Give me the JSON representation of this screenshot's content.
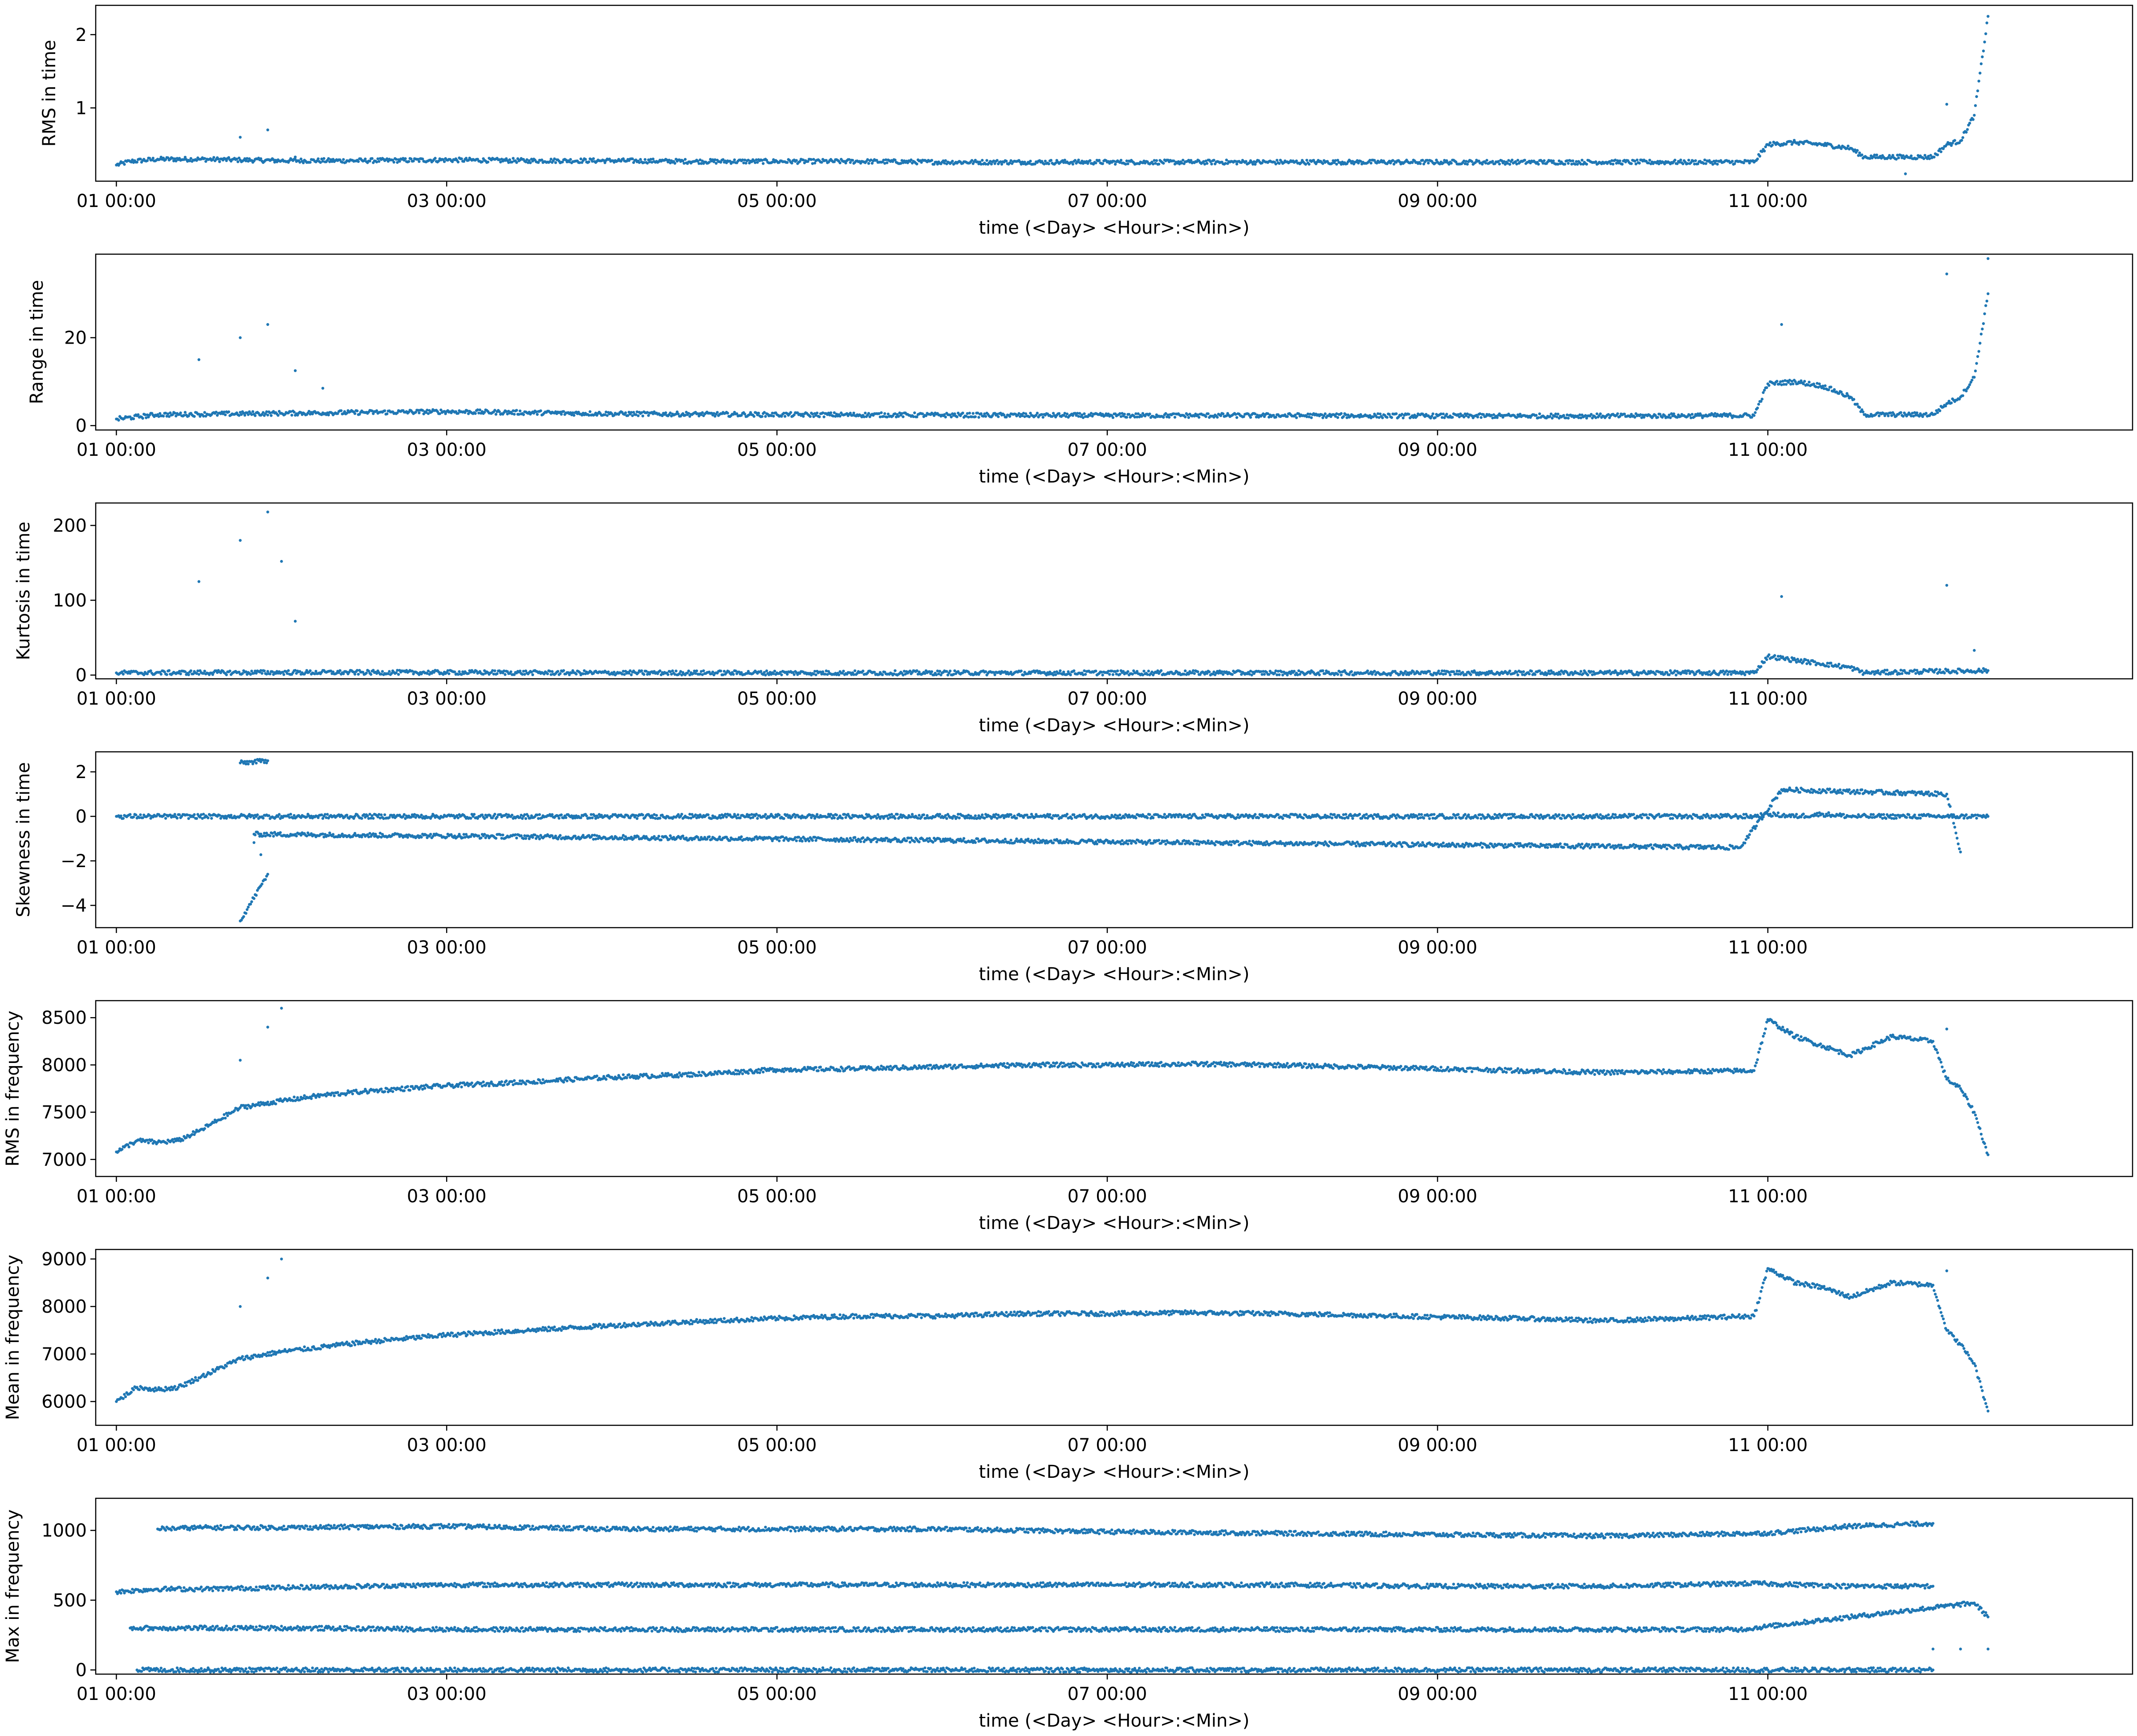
{
  "chart_data": [
    {
      "type": "scatter",
      "ylabel": "RMS in time",
      "xlabel": "time (<Day> <Hour>:<Min>)",
      "ylim": [
        0.0,
        2.4
      ],
      "yticks": [
        1,
        2
      ],
      "xlim": [
        "00 21:00",
        "13 05:00"
      ],
      "xticks": [
        "01 00:00",
        "03 00:00",
        "05 00:00",
        "07 00:00",
        "09 00:00",
        "11 00:00"
      ],
      "grid": false,
      "color": "#1f77b4",
      "series": [
        {
          "x": [
            "01 00:00",
            "01 02:00",
            "01 06:00",
            "01 12:00",
            "01 18:00",
            "02 00:00",
            "02 12:00",
            "03 00:00",
            "03 12:00",
            "04 00:00",
            "04 12:00",
            "05 00:00",
            "05 12:00",
            "06 00:00",
            "06 12:00",
            "07 00:00",
            "07 12:00",
            "08 00:00",
            "08 12:00",
            "09 00:00",
            "09 12:00",
            "10 00:00",
            "10 12:00",
            "10 22:00",
            "11 00:00",
            "11 04:00",
            "11 08:00",
            "11 12:00",
            "11 14:00",
            "11 20:00",
            "11 22:00",
            "12 00:00",
            "12 02:00",
            "12 04:00",
            "12 06:00",
            "12 08:00"
          ],
          "y": [
            0.22,
            0.27,
            0.3,
            0.3,
            0.29,
            0.28,
            0.28,
            0.29,
            0.28,
            0.28,
            0.27,
            0.27,
            0.27,
            0.26,
            0.26,
            0.26,
            0.26,
            0.26,
            0.26,
            0.26,
            0.26,
            0.26,
            0.26,
            0.26,
            0.5,
            0.53,
            0.5,
            0.45,
            0.33,
            0.33,
            0.33,
            0.33,
            0.5,
            0.55,
            0.9,
            2.25
          ]
        },
        {
          "x": [
            "01 18:00",
            "01 22:00",
            "02 02:00",
            "11 20:00",
            "12 02:00"
          ],
          "y": [
            0.6,
            0.7,
            0.33,
            0.1,
            1.05
          ]
        }
      ]
    },
    {
      "type": "scatter",
      "ylabel": "Range in time",
      "xlabel": "time (<Day> <Hour>:<Min>)",
      "ylim": [
        -1.0,
        39.0
      ],
      "yticks": [
        0,
        20
      ],
      "xlim": [
        "00 21:00",
        "13 05:00"
      ],
      "xticks": [
        "01 00:00",
        "03 00:00",
        "05 00:00",
        "07 00:00",
        "09 00:00",
        "11 00:00"
      ],
      "grid": false,
      "color": "#1f77b4",
      "series": [
        {
          "x": [
            "01 00:00",
            "01 06:00",
            "01 12:00",
            "02 00:00",
            "02 12:00",
            "03 00:00",
            "04 00:00",
            "05 00:00",
            "06 00:00",
            "07 00:00",
            "08 00:00",
            "09 00:00",
            "10 00:00",
            "10 22:00",
            "11 00:00",
            "11 04:00",
            "11 08:00",
            "11 12:00",
            "11 14:00",
            "11 20:00",
            "12 00:00",
            "12 02:00",
            "12 04:00",
            "12 06:00",
            "12 08:00"
          ],
          "y": [
            1.5,
            2.5,
            2.6,
            2.8,
            3.0,
            3.2,
            2.7,
            2.5,
            2.4,
            2.3,
            2.3,
            2.2,
            2.2,
            2.3,
            9.5,
            10.0,
            9.0,
            6.5,
            2.5,
            2.5,
            2.5,
            5.0,
            6.5,
            11.0,
            30.0
          ]
        },
        {
          "x": [
            "01 12:00",
            "01 18:00",
            "01 22:00",
            "02 02:00",
            "02 06:00",
            "11 02:00",
            "12 02:00",
            "12 08:00"
          ],
          "y": [
            15.0,
            20.0,
            23.0,
            12.5,
            8.5,
            23.0,
            34.5,
            38.0
          ]
        }
      ]
    },
    {
      "type": "scatter",
      "ylabel": "Kurtosis in time",
      "xlabel": "time (<Day> <Hour>:<Min>)",
      "ylim": [
        -5.0,
        230.0
      ],
      "yticks": [
        0,
        100,
        200
      ],
      "xlim": [
        "00 21:00",
        "13 05:00"
      ],
      "xticks": [
        "01 00:00",
        "03 00:00",
        "05 00:00",
        "07 00:00",
        "09 00:00",
        "11 00:00"
      ],
      "grid": false,
      "color": "#1f77b4",
      "series": [
        {
          "x": [
            "01 00:00",
            "02 00:00",
            "03 00:00",
            "04 00:00",
            "05 00:00",
            "06 00:00",
            "07 00:00",
            "08 00:00",
            "09 00:00",
            "10 00:00",
            "10 22:00",
            "11 00:00",
            "11 04:00",
            "11 08:00",
            "11 12:00",
            "11 14:00",
            "12 00:00",
            "12 08:00"
          ],
          "y": [
            3,
            3.5,
            3.5,
            3,
            3,
            3,
            3,
            3,
            3,
            3,
            3,
            25,
            20,
            15,
            10,
            3,
            5,
            6
          ]
        },
        {
          "x": [
            "01 12:00",
            "01 18:00",
            "01 22:00",
            "02 00:00",
            "02 02:00",
            "11 02:00",
            "12 02:00",
            "12 06:00"
          ],
          "y": [
            125,
            180,
            218,
            152,
            72,
            105,
            120,
            33
          ]
        }
      ]
    },
    {
      "type": "scatter",
      "ylabel": "Skewness in time",
      "xlabel": "time (<Day> <Hour>:<Min>)",
      "ylim": [
        -5.0,
        2.9
      ],
      "yticks": [
        -4,
        -2,
        0,
        2
      ],
      "xlim": [
        "00 21:00",
        "13 05:00"
      ],
      "xticks": [
        "01 00:00",
        "03 00:00",
        "05 00:00",
        "07 00:00",
        "09 00:00",
        "11 00:00"
      ],
      "grid": false,
      "color": "#1f77b4",
      "series": [
        {
          "x": [
            "01 00:00",
            "02 00:00",
            "03 00:00",
            "04 00:00",
            "05 00:00",
            "06 00:00",
            "07 00:00",
            "08 00:00",
            "09 00:00",
            "10 00:00",
            "10 22:00",
            "11 00:00",
            "11 04:00",
            "11 08:00",
            "11 12:00",
            "12 00:00",
            "12 08:00"
          ],
          "y": [
            0,
            0,
            0,
            0,
            0,
            0,
            0,
            0,
            0,
            0,
            0,
            0.1,
            0.0,
            0.1,
            0.0,
            0.0,
            0.0
          ]
        },
        {
          "x": [
            "01 18:00",
            "01 22:00",
            "01 18:00",
            "01 22:00",
            "01 20:00",
            "10 20:00",
            "11 02:00",
            "12 02:00",
            "12 04:00"
          ],
          "y": [
            2.4,
            2.5,
            -4.7,
            -2.6,
            -0.8,
            -1.4,
            1.2,
            1.0,
            -1.6
          ]
        }
      ]
    },
    {
      "type": "scatter",
      "ylabel": "RMS in frequency",
      "xlabel": "time (<Day> <Hour>:<Min>)",
      "ylim": [
        6820,
        8680
      ],
      "yticks": [
        7000,
        7500,
        8000,
        8500
      ],
      "xlim": [
        "00 21:00",
        "13 05:00"
      ],
      "xticks": [
        "01 00:00",
        "03 00:00",
        "05 00:00",
        "07 00:00",
        "09 00:00",
        "11 00:00"
      ],
      "grid": false,
      "color": "#1f77b4",
      "series": [
        {
          "x": [
            "01 00:00",
            "01 03:00",
            "01 06:00",
            "01 09:00",
            "01 12:00",
            "01 18:00",
            "02 00:00",
            "02 06:00",
            "02 12:00",
            "03 00:00",
            "03 12:00",
            "04 00:00",
            "04 12:00",
            "05 00:00",
            "05 12:00",
            "06 00:00",
            "06 12:00",
            "07 00:00",
            "07 12:00",
            "08 00:00",
            "08 12:00",
            "09 00:00",
            "09 12:00",
            "10 00:00",
            "10 12:00",
            "10 22:00",
            "11 00:00",
            "11 04:00",
            "11 08:00",
            "11 12:00",
            "11 18:00",
            "12 00:00",
            "12 02:00",
            "12 04:00",
            "12 06:00",
            "12 08:00"
          ],
          "y": [
            7080,
            7200,
            7180,
            7200,
            7300,
            7550,
            7620,
            7680,
            7720,
            7780,
            7820,
            7870,
            7900,
            7950,
            7960,
            7980,
            8000,
            8000,
            8010,
            8000,
            7980,
            7960,
            7940,
            7920,
            7930,
            7940,
            8480,
            8300,
            8200,
            8100,
            8300,
            8250,
            7850,
            7750,
            7500,
            7050
          ]
        },
        {
          "x": [
            "01 18:00",
            "01 22:00",
            "02 00:00",
            "12 02:00"
          ],
          "y": [
            8050,
            8400,
            8600,
            8380
          ]
        }
      ]
    },
    {
      "type": "scatter",
      "ylabel": "Mean in frequency",
      "xlabel": "time (<Day> <Hour>:<Min>)",
      "ylim": [
        5500,
        9200
      ],
      "yticks": [
        6000,
        7000,
        8000,
        9000
      ],
      "xlim": [
        "00 21:00",
        "13 05:00"
      ],
      "xticks": [
        "01 00:00",
        "03 00:00",
        "05 00:00",
        "07 00:00",
        "09 00:00",
        "11 00:00"
      ],
      "grid": false,
      "color": "#1f77b4",
      "series": [
        {
          "x": [
            "01 00:00",
            "01 03:00",
            "01 06:00",
            "01 09:00",
            "01 12:00",
            "01 18:00",
            "02 00:00",
            "02 06:00",
            "02 12:00",
            "03 00:00",
            "03 12:00",
            "04 00:00",
            "04 12:00",
            "05 00:00",
            "05 12:00",
            "06 00:00",
            "06 12:00",
            "07 00:00",
            "07 12:00",
            "08 00:00",
            "08 12:00",
            "09 00:00",
            "09 12:00",
            "10 00:00",
            "10 12:00",
            "10 22:00",
            "11 00:00",
            "11 04:00",
            "11 08:00",
            "11 12:00",
            "11 18:00",
            "12 00:00",
            "12 02:00",
            "12 04:00",
            "12 06:00",
            "12 08:00"
          ],
          "y": [
            6000,
            6300,
            6250,
            6300,
            6500,
            6900,
            7050,
            7150,
            7250,
            7400,
            7500,
            7600,
            7680,
            7750,
            7800,
            7800,
            7850,
            7850,
            7870,
            7850,
            7820,
            7780,
            7750,
            7700,
            7750,
            7800,
            8800,
            8500,
            8400,
            8200,
            8500,
            8450,
            7500,
            7200,
            6800,
            5800
          ]
        },
        {
          "x": [
            "01 18:00",
            "01 22:00",
            "02 00:00",
            "12 02:00"
          ],
          "y": [
            8000,
            8600,
            9000,
            8750
          ]
        }
      ]
    },
    {
      "type": "scatter",
      "ylabel": "Max in frequency",
      "xlabel": "time (<Day> <Hour>:<Min>)",
      "ylim": [
        -30,
        1230
      ],
      "yticks": [
        0,
        500,
        1000
      ],
      "xlim": [
        "00 21:00",
        "13 05:00"
      ],
      "xticks": [
        "01 00:00",
        "03 00:00",
        "05 00:00",
        "07 00:00",
        "09 00:00",
        "11 00:00"
      ],
      "grid": false,
      "color": "#1f77b4",
      "series": [
        {
          "x": [
            "01 00:00",
            "01 06:00",
            "01 12:00",
            "02 00:00",
            "03 00:00",
            "04 00:00",
            "05 00:00",
            "06 00:00",
            "07 00:00",
            "08 00:00",
            "09 00:00",
            "10 00:00",
            "10 22:00",
            "11 12:00",
            "12 00:00"
          ],
          "y": [
            560,
            580,
            580,
            590,
            610,
            610,
            610,
            610,
            610,
            610,
            600,
            600,
            620,
            600,
            600
          ]
        },
        {
          "x": [
            "01 06:00",
            "01 12:00",
            "02 00:00",
            "03 00:00",
            "04 00:00",
            "05 00:00",
            "06 00:00",
            "07 00:00",
            "08 00:00",
            "09 00:00",
            "10 00:00",
            "11 00:00",
            "11 12:00",
            "12 00:00"
          ],
          "y": [
            1010,
            1020,
            1020,
            1030,
            1010,
            1010,
            1010,
            990,
            980,
            970,
            960,
            980,
            1030,
            1050
          ]
        },
        {
          "x": [
            "01 03:00",
            "01 12:00",
            "02 00:00",
            "03 00:00",
            "04 00:00",
            "05 00:00",
            "06 00:00",
            "07 00:00",
            "08 00:00",
            "09 00:00",
            "10 00:00",
            "11 00:00",
            "11 12:00",
            "12 00:00"
          ],
          "y": [
            0,
            0,
            0,
            0,
            0,
            0,
            0,
            0,
            0,
            0,
            0,
            0,
            0,
            0
          ]
        },
        {
          "x": [
            "12 00:00",
            "12 04:00",
            "12 08:00"
          ],
          "y": [
            150,
            150,
            150
          ]
        },
        {
          "x": [
            "01 02:00",
            "01 04:00",
            "01 12:00",
            "01 18:00",
            "02 02:00",
            "03 02:00",
            "04 00:00",
            "04 04:00",
            "10 20:00",
            "12 06:00",
            "12 08:00"
          ],
          "y": [
            300,
            300,
            300,
            300,
            300,
            290,
            290,
            290,
            290,
            480,
            380
          ]
        }
      ]
    }
  ]
}
